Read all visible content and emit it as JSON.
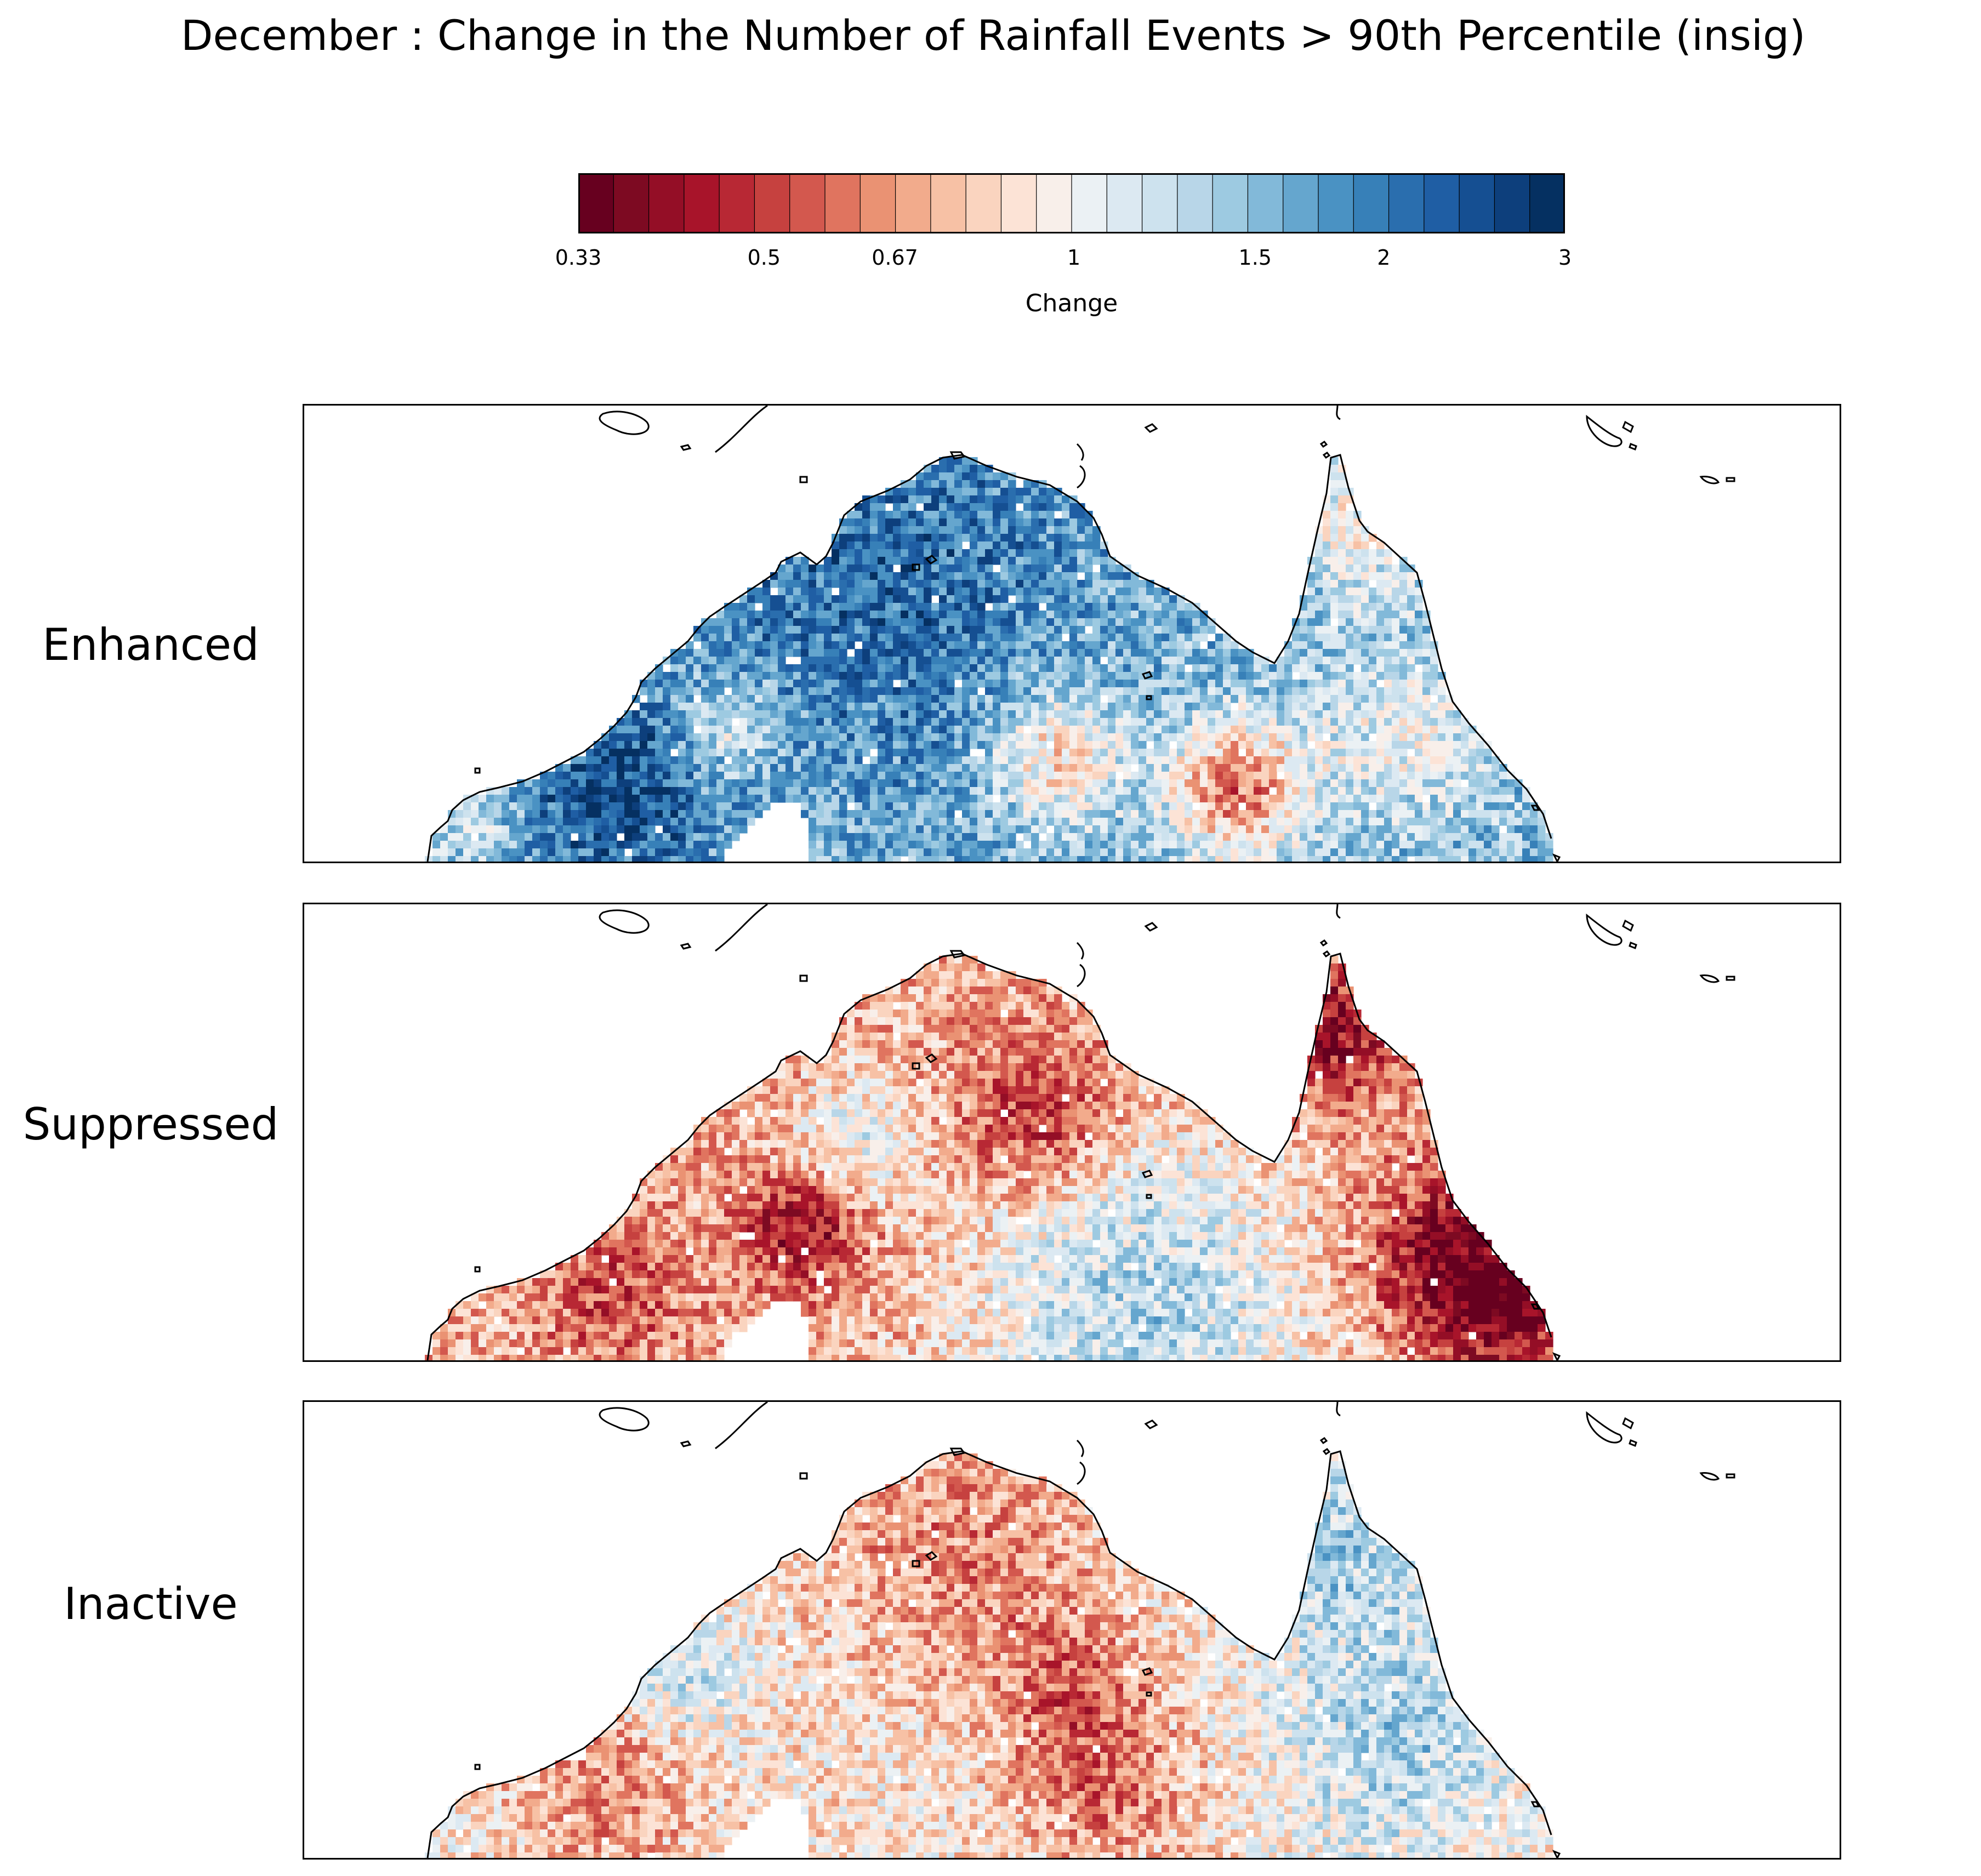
{
  "title": "December : Change in the Number of Rainfall Events > 90th Percentile (insig)",
  "colorbar": {
    "label": "Change",
    "ticks": [
      "0.33",
      "0.5",
      "0.67",
      "1",
      "1.5",
      "2",
      "3"
    ],
    "tick_values": [
      0.33,
      0.5,
      0.67,
      1,
      1.5,
      2,
      3
    ],
    "scale": "log",
    "range": [
      0.33,
      3
    ],
    "colors": [
      "#67001f",
      "#7d0a22",
      "#940e26",
      "#a8142a",
      "#b82834",
      "#c6413f",
      "#d3584e",
      "#e0745f",
      "#ea9273",
      "#f2ab8c",
      "#f7c1a5",
      "#fad4bf",
      "#fce3d6",
      "#f8efea",
      "#ebf1f4",
      "#dce9f2",
      "#cde2ee",
      "#b8d6e8",
      "#9dcae1",
      "#82b9d9",
      "#65a6ce",
      "#4a92c3",
      "#3780b8",
      "#2a6eae",
      "#1f5ea4",
      "#154f92",
      "#0d3f7c",
      "#053061"
    ]
  },
  "panels": [
    {
      "label": "Enhanced",
      "pattern": "enhanced"
    },
    {
      "label": "Suppressed",
      "pattern": "suppressed"
    },
    {
      "label": "Inactive",
      "pattern": "inactive"
    }
  ],
  "chart_data": {
    "type": "heatmap",
    "title": "December : Change in the Number of Rainfall Events > 90th Percentile (insig)",
    "colorbar_label": "Change",
    "colorbar_ticks": [
      0.33,
      0.5,
      0.67,
      1,
      1.5,
      2,
      3
    ],
    "colorbar_range": [
      0.33,
      3
    ],
    "colorbar_scale": "log",
    "colormap": "RdBu",
    "panels": [
      "Enhanced",
      "Suppressed",
      "Inactive"
    ],
    "grid": false
  }
}
